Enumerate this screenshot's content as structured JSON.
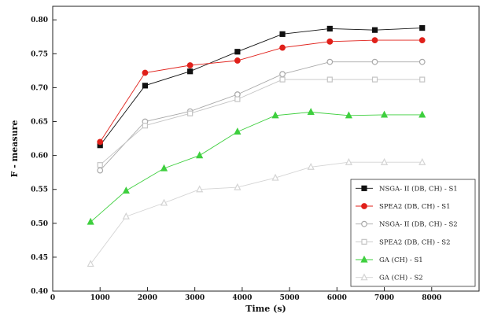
{
  "chart_data": {
    "type": "line",
    "title": "",
    "xlabel": "Time (s)",
    "ylabel": "F - measure",
    "xlim": [
      0,
      9000
    ],
    "ylim": [
      0.4,
      0.82
    ],
    "x_ticks": [
      "0",
      "1000",
      "2000",
      "3000",
      "4000",
      "5000",
      "6000",
      "7000",
      "8000"
    ],
    "y_ticks": [
      "0.40",
      "0.45",
      "0.50",
      "0.55",
      "0.60",
      "0.65",
      "0.70",
      "0.75",
      "0.80"
    ],
    "grid": false,
    "legend_position": "bottom-right",
    "series": [
      {
        "name": "NSGA- II (DB, CH) - S1",
        "color": "#111111",
        "marker": "square",
        "filled": true,
        "x": [
          1000,
          1950,
          2900,
          3900,
          4850,
          5850,
          6800,
          7800
        ],
        "y": [
          0.615,
          0.703,
          0.724,
          0.753,
          0.779,
          0.787,
          0.785,
          0.788
        ]
      },
      {
        "name": "SPEA2 (DB, CH) - S1",
        "color": "#e0201a",
        "marker": "circle",
        "filled": true,
        "x": [
          1000,
          1950,
          2900,
          3900,
          4850,
          5850,
          6800,
          7800
        ],
        "y": [
          0.62,
          0.722,
          0.733,
          0.74,
          0.759,
          0.768,
          0.77,
          0.77
        ]
      },
      {
        "name": "NSGA- II (DB, CH) - S2",
        "color": "#a8a8a8",
        "marker": "circle",
        "filled": false,
        "x": [
          1000,
          1950,
          2900,
          3900,
          4850,
          5850,
          6800,
          7800
        ],
        "y": [
          0.578,
          0.65,
          0.665,
          0.69,
          0.72,
          0.738,
          0.738,
          0.738
        ]
      },
      {
        "name": "SPEA2 (DB, CH) - S2",
        "color": "#c4c4c4",
        "marker": "square",
        "filled": false,
        "x": [
          1000,
          1950,
          2900,
          3900,
          4850,
          5850,
          6800,
          7800
        ],
        "y": [
          0.586,
          0.644,
          0.662,
          0.683,
          0.712,
          0.712,
          0.712,
          0.712
        ]
      },
      {
        "name": "GA (CH) - S1",
        "color": "#3ecf3e",
        "marker": "triangle",
        "filled": true,
        "x": [
          800,
          1550,
          2350,
          3100,
          3900,
          4700,
          5450,
          6250,
          7000,
          7800
        ],
        "y": [
          0.502,
          0.548,
          0.581,
          0.6,
          0.635,
          0.659,
          0.664,
          0.659,
          0.66,
          0.66
        ]
      },
      {
        "name": "GA (CH) - S2",
        "color": "#d4d4d4",
        "marker": "triangle",
        "filled": false,
        "x": [
          800,
          1550,
          2350,
          3100,
          3900,
          4700,
          5450,
          6250,
          7000,
          7800
        ],
        "y": [
          0.44,
          0.51,
          0.53,
          0.55,
          0.553,
          0.567,
          0.583,
          0.59,
          0.59,
          0.59
        ]
      }
    ]
  }
}
